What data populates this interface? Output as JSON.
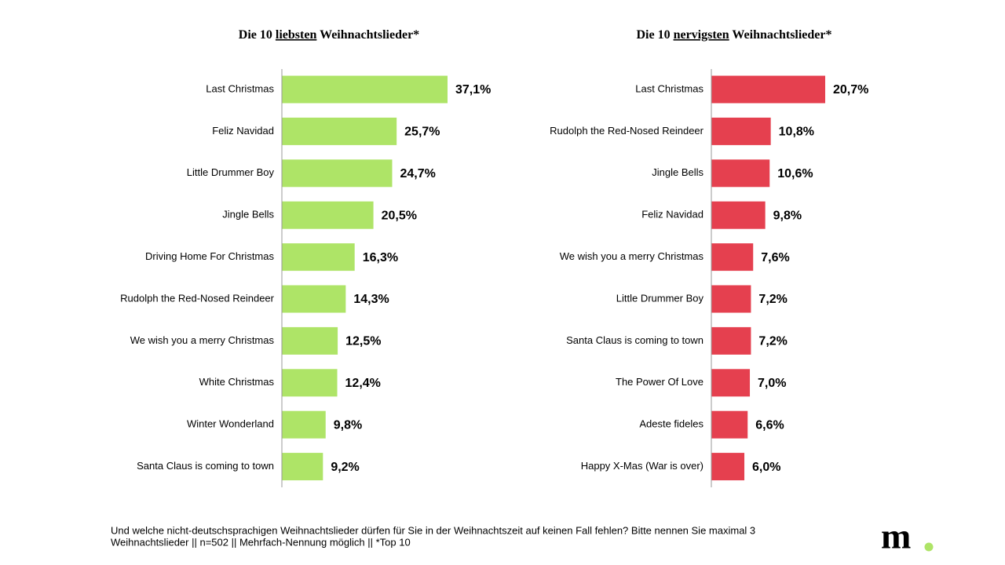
{
  "chart_data": [
    {
      "type": "bar",
      "orientation": "horizontal",
      "color": "#aee467",
      "title": [
        {
          "text": "Die 10 "
        },
        {
          "text": "liebsten",
          "underline": true
        },
        {
          "text": " Weihnachtslieder*"
        }
      ],
      "categories": [
        "Last Christmas",
        "Feliz Navidad",
        "Little Drummer Boy",
        "Jingle Bells",
        "Driving Home For Christmas",
        "Rudolph the Red-Nosed Reindeer",
        "We wish you a merry Christmas",
        "White Christmas",
        "Winter Wonderland",
        "Santa Claus is coming to town"
      ],
      "values": [
        37.1,
        25.7,
        24.7,
        20.5,
        16.3,
        14.3,
        12.5,
        12.4,
        9.8,
        9.2
      ],
      "value_labels": [
        "37,1%",
        "25,7%",
        "24,7%",
        "20,5%",
        "16,3%",
        "14,3%",
        "12,5%",
        "12,4%",
        "9,8%",
        "9,2%"
      ]
    },
    {
      "type": "bar",
      "orientation": "horizontal",
      "color": "#e5404f",
      "title": [
        {
          "text": "Die 10 "
        },
        {
          "text": "nervigsten",
          "underline": true
        },
        {
          "text": " Weihnachtslieder*"
        }
      ],
      "categories": [
        "Last Christmas",
        "Rudolph the Red-Nosed Reindeer",
        "Jingle Bells",
        "Feliz Navidad",
        "We wish you a merry Christmas",
        "Little Drummer Boy",
        "Santa Claus is coming to town",
        "The Power Of Love",
        "Adeste fideles",
        "Happy X-Mas (War is over)"
      ],
      "values": [
        20.7,
        10.8,
        10.6,
        9.8,
        7.6,
        7.2,
        7.2,
        7.0,
        6.6,
        6.0
      ],
      "value_labels": [
        "20,7%",
        "10,8%",
        "10,6%",
        "9,8%",
        "7,6%",
        "7,2%",
        "7,2%",
        "7,0%",
        "6,6%",
        "6,0%"
      ]
    }
  ],
  "footnote": [
    "Und welche nicht-deutschsprachigen Weihnachtslieder dürfen für Sie in der Weihnachtszeit auf keinen Fall fehlen? Bitte nennen Sie maximal 3",
    "Weihnachtslieder || n=502 || Mehrfach-Nennung möglich || *Top 10"
  ],
  "logo": "m"
}
